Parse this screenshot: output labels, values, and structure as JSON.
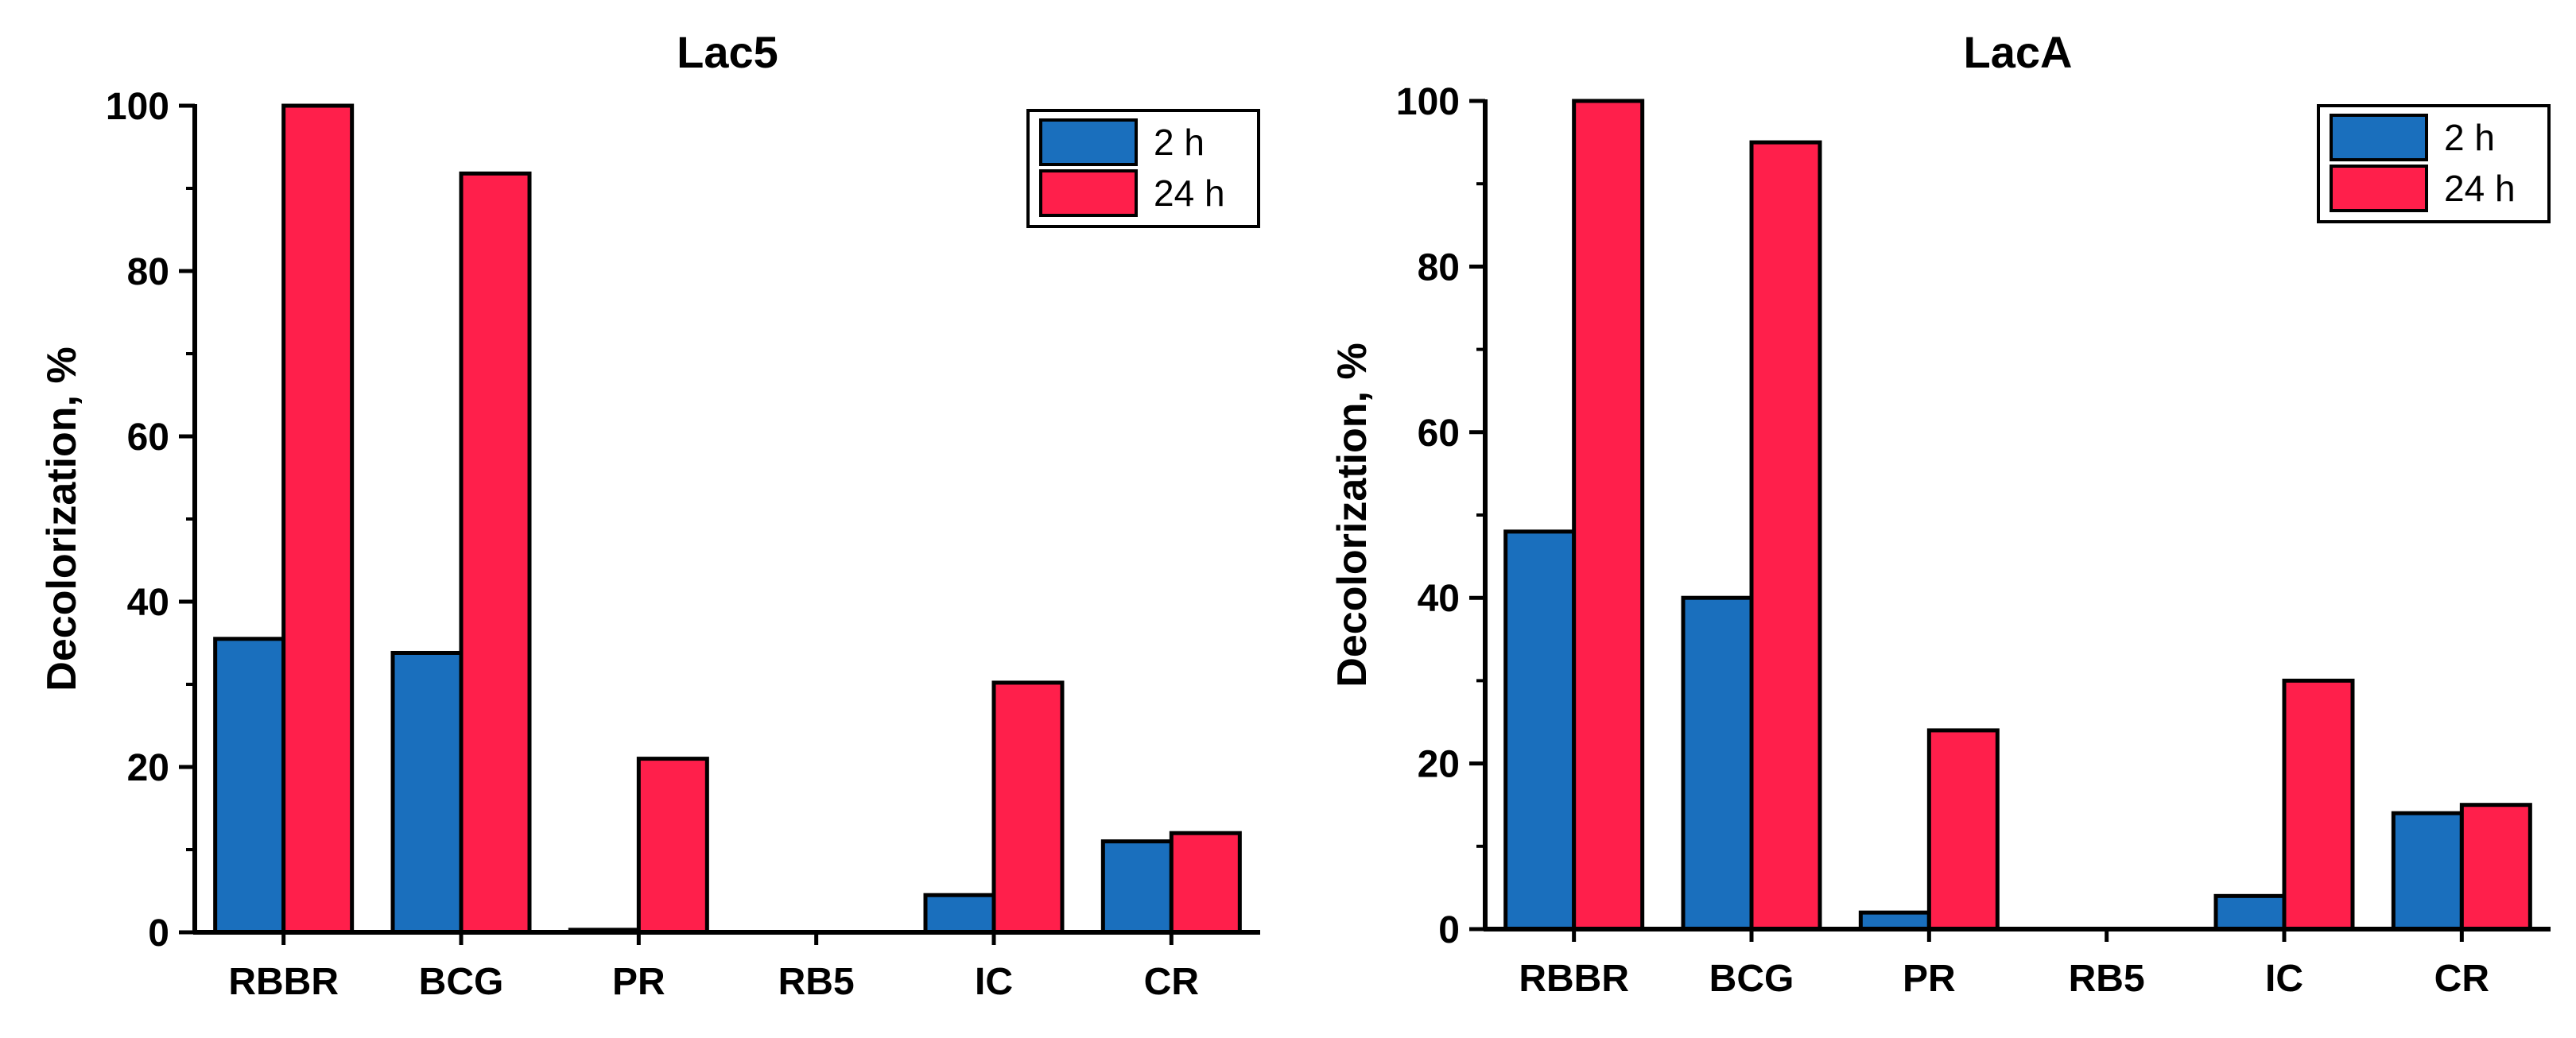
{
  "chart_data": [
    {
      "type": "bar",
      "title": "Lac5",
      "xlabel": "",
      "ylabel": "Decolorization, %",
      "ylim": [
        0,
        100
      ],
      "yticks": [
        0,
        20,
        40,
        60,
        80,
        100
      ],
      "categories": [
        "RBBR",
        "BCG",
        "PR",
        "RB5",
        "IC",
        "CR"
      ],
      "series": [
        {
          "name": "2 h",
          "color": "#1a6fbd",
          "values": [
            35.5,
            33.8,
            0.3,
            0,
            4.5,
            11
          ]
        },
        {
          "name": "24 h",
          "color": "#ff1f4b",
          "values": [
            100,
            91.8,
            21,
            0,
            30.2,
            12
          ]
        }
      ],
      "legend": "top-right"
    },
    {
      "type": "bar",
      "title": "LacA",
      "xlabel": "",
      "ylabel": "Decolorization, %",
      "ylim": [
        0,
        100
      ],
      "yticks": [
        0,
        20,
        40,
        60,
        80,
        100
      ],
      "categories": [
        "RBBR",
        "BCG",
        "PR",
        "RB5",
        "IC",
        "CR"
      ],
      "series": [
        {
          "name": "2 h",
          "color": "#1a6fbd",
          "values": [
            48,
            40,
            2,
            0,
            4,
            14
          ]
        },
        {
          "name": "24 h",
          "color": "#ff1f4b",
          "values": [
            100,
            95,
            24,
            0,
            30,
            15
          ]
        }
      ],
      "legend": "top-right"
    }
  ]
}
